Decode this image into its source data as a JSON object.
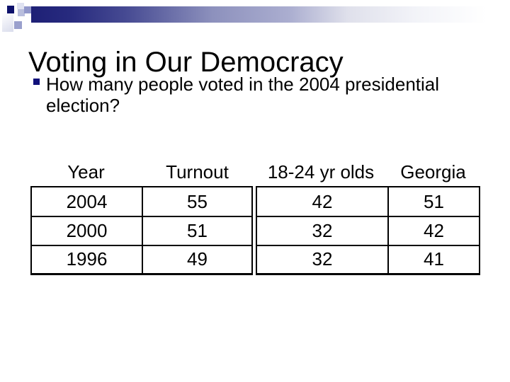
{
  "slide": {
    "title": "Voting in Our Democracy",
    "bullet_question_lines": [
      "How many people voted in the 2004 presidential",
      "election?"
    ]
  },
  "table": {
    "columns": [
      "Year",
      "Turnout",
      "18-24 yr olds",
      "Georgia"
    ],
    "rows": [
      [
        "2004",
        "55",
        "42",
        "51"
      ],
      [
        "2000",
        "51",
        "32",
        "42"
      ],
      [
        "1996",
        "49",
        "32",
        "41"
      ]
    ]
  },
  "icons": {
    "bullet": "square-bullet-icon"
  },
  "theme": {
    "text": "#000000",
    "line": "#000000",
    "bullet": "#10107a",
    "bar-c0": "#1e2076",
    "bar-c1": "#272a7e",
    "bar-c2": "#474b93",
    "bar-c3": "#8d91bd",
    "bar-c4": "#abaed0",
    "bar-c5": "#dfe0eb",
    "bar-c6": "#f2f3f8",
    "sq-navy": "#0d116b",
    "sq-light": "#dfe2f1",
    "sq-mid": "#b9bedd",
    "sq-medium": "#9298cb",
    "sq-lower": "#9aa0cd",
    "strip-light": "#ffffff",
    "strip-dark": "#d9dcec"
  }
}
